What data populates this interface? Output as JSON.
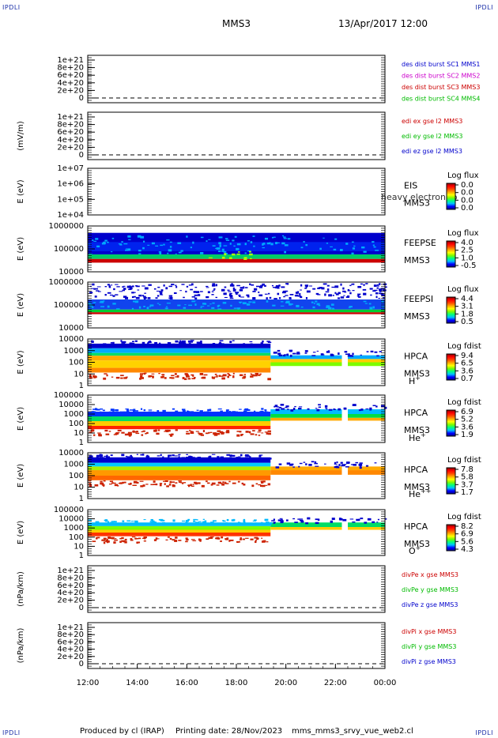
{
  "corners": {
    "tl": "IPDLI",
    "tr": "IPDLI",
    "bl": "IPDLI",
    "br": "IPDLI"
  },
  "header": {
    "mission": "MMS3",
    "datetime": "13/Apr/2017 12:00"
  },
  "footer": {
    "produced": "Produced by cl (IRAP)",
    "printing": "Printing date: 28/Nov/2023",
    "file": "mms_mms3_srvy_vue_web2.cl"
  },
  "colors": {
    "rainbow": [
      "#00008b",
      "#0000ff",
      "#00bfff",
      "#00ff7f",
      "#7cfc00",
      "#ffff00",
      "#ffa500",
      "#ff4500",
      "#ff0000",
      "#8b0000"
    ]
  },
  "chart_data": {
    "type": "line",
    "x_ticks": [
      "12:00",
      "14:00",
      "16:00",
      "18:00",
      "20:00",
      "22:00",
      "00:00"
    ],
    "panels": [
      {
        "kind": "line",
        "ylabel": "",
        "y_ticks": [
          "1e+21",
          "8e+20",
          "6e+20",
          "4e+20",
          "2e+20",
          "0"
        ],
        "legend": [
          {
            "text": "des dist burst SC1 MMS1",
            "color": "#0000cc"
          },
          {
            "text": "des dist burst SC2 MMS2",
            "color": "#cc00cc"
          },
          {
            "text": "des dist burst SC3 MMS3",
            "color": "#cc0000"
          },
          {
            "text": "des dist burst SC4 MMS4",
            "color": "#00bb00"
          }
        ]
      },
      {
        "kind": "line",
        "ylabel": "(mV/m)",
        "y_ticks": [
          "1e+21",
          "8e+20",
          "6e+20",
          "4e+20",
          "2e+20",
          "0"
        ],
        "legend": [
          {
            "text": "edi ex gse l2 MMS3",
            "color": "#cc0000"
          },
          {
            "text": "edi ey gse l2 MMS3",
            "color": "#00bb00"
          },
          {
            "text": "edi ez gse l2 MMS3",
            "color": "#0000cc"
          }
        ]
      },
      {
        "kind": "spec",
        "ylabel": "E (eV)",
        "y_ticks": [
          "1e+07",
          "1e+06",
          "1e+05",
          "1e+04"
        ],
        "instrument": [
          "EIS",
          "MMS3"
        ],
        "overlay": "heavy electron to",
        "cb_title": "Log flux",
        "cb_ticks": [
          "0.0",
          "0.0",
          "0.0",
          "0.0"
        ],
        "species": ""
      },
      {
        "kind": "spec",
        "ylabel": "E (eV)",
        "y_ticks": [
          "1000000",
          "100000",
          "10000"
        ],
        "instrument": [
          "FEEPSE",
          "MMS3"
        ],
        "cb_title": "Log flux",
        "cb_ticks": [
          "4.0",
          "2.5",
          "1.0",
          "-0.5"
        ],
        "species": ""
      },
      {
        "kind": "spec",
        "ylabel": "E (eV)",
        "y_ticks": [
          "1000000",
          "100000",
          "10000"
        ],
        "instrument": [
          "FEEPSI",
          "MMS3"
        ],
        "cb_title": "Log flux",
        "cb_ticks": [
          "4.4",
          "3.1",
          "1.8",
          "0.5"
        ],
        "species": ""
      },
      {
        "kind": "spec",
        "ylabel": "E (eV)",
        "y_ticks": [
          "10000",
          "1000",
          "100",
          "10",
          "1"
        ],
        "instrument": [
          "HPCA",
          "MMS3"
        ],
        "cb_title": "Log fdist",
        "cb_ticks": [
          "9.4",
          "6.5",
          "3.6",
          "0.7"
        ],
        "species": "H",
        "species_sup": "+"
      },
      {
        "kind": "spec",
        "ylabel": "E (eV)",
        "y_ticks": [
          "100000",
          "10000",
          "1000",
          "100",
          "10",
          "1"
        ],
        "instrument": [
          "HPCA",
          "MMS3"
        ],
        "cb_title": "Log fdist",
        "cb_ticks": [
          "6.9",
          "5.2",
          "3.6",
          "1.9"
        ],
        "species": "He",
        "species_sup": "+"
      },
      {
        "kind": "spec",
        "ylabel": "E (eV)",
        "y_ticks": [
          "10000",
          "1000",
          "100",
          "10",
          "1"
        ],
        "instrument": [
          "HPCA",
          "MMS3"
        ],
        "cb_title": "Log fdist",
        "cb_ticks": [
          "7.8",
          "5.8",
          "3.7",
          "1.7"
        ],
        "species": "He",
        "species_sup": "++"
      },
      {
        "kind": "spec",
        "ylabel": "E (eV)",
        "y_ticks": [
          "100000",
          "10000",
          "1000",
          "100",
          "10",
          "1"
        ],
        "instrument": [
          "HPCA",
          "MMS3"
        ],
        "cb_title": "Log fdist",
        "cb_ticks": [
          "8.2",
          "6.9",
          "5.6",
          "4.3"
        ],
        "species": "O",
        "species_sup": "+"
      },
      {
        "kind": "line",
        "ylabel": "(nPa/km)",
        "y_ticks": [
          "1e+21",
          "8e+20",
          "6e+20",
          "4e+20",
          "2e+20",
          "0"
        ],
        "legend": [
          {
            "text": "divPe x gse MMS3",
            "color": "#cc0000"
          },
          {
            "text": "divPe y gse MMS3",
            "color": "#00bb00"
          },
          {
            "text": "divPe z gse MMS3",
            "color": "#0000cc"
          }
        ]
      },
      {
        "kind": "line",
        "ylabel": "(nPa/km)",
        "y_ticks": [
          "1e+21",
          "8e+20",
          "6e+20",
          "4e+20",
          "2e+20",
          "0"
        ],
        "legend": [
          {
            "text": "divPi x gse MMS3",
            "color": "#cc0000"
          },
          {
            "text": "divPi y gse MMS3",
            "color": "#00bb00"
          },
          {
            "text": "divPi z gse MMS3",
            "color": "#0000cc"
          }
        ]
      }
    ]
  }
}
